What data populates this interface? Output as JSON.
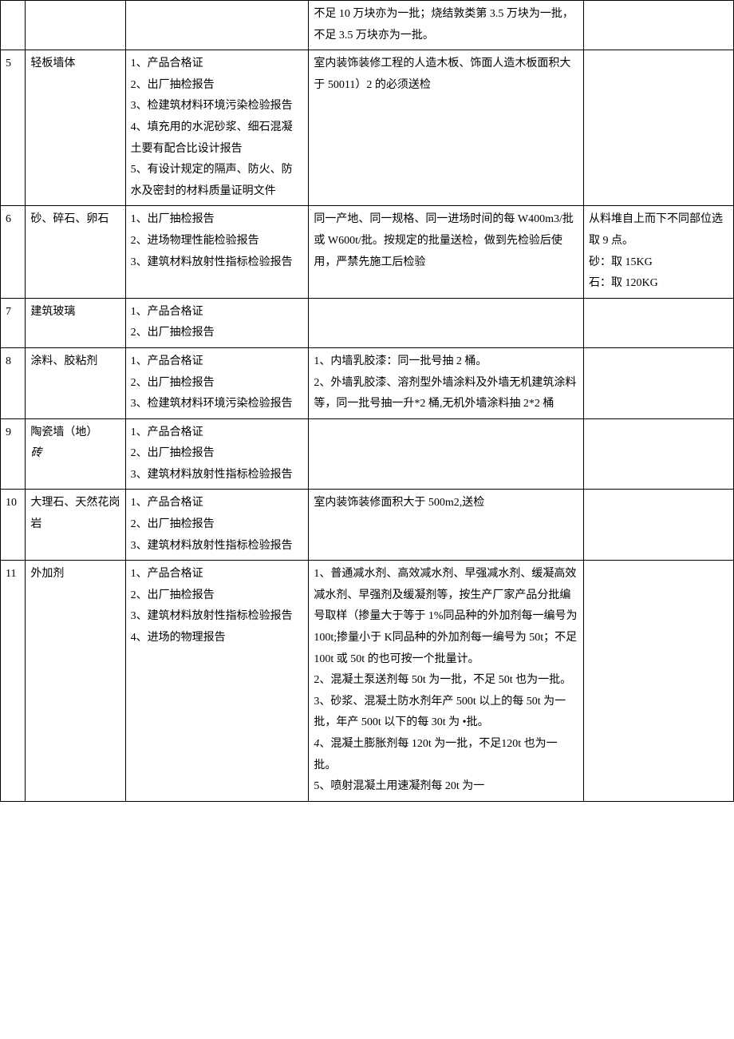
{
  "rows": [
    {
      "no": "",
      "name": "",
      "docs": "",
      "batch": "不足 10 万块亦为一批；烧结敦类第 3.5 万块为一批，不足 3.5 万块亦为一批。",
      "note": ""
    },
    {
      "no": "5",
      "name": "轻板墙体",
      "docs": "1、产品合格证\n2、出厂抽检报告\n3、检建筑材料环境污染检验报告\n4、填充用的水泥砂浆、细石混凝土要有配合比设计报告\n5、有设计规定的隔声、防火、防水及密封的材料质量证明文件",
      "batch": "室内装饰装修工程的人造木板、饰面人造木板面积大于 50011）2 的必须送检",
      "note": ""
    },
    {
      "no": "6",
      "name": "砂、碎石、卵石",
      "docs": "1、出厂抽检报告\n2、进场物理性能检验报告\n3、建筑材料放射性指标检验报告",
      "batch": "同一产地、同一规格、同一进场时间的每 W400m3/批或 W600t/批。按规定的批量送检，做到先检验后使用，严禁先施工后检验",
      "note": "从料堆自上而下不同部位选取 9 点。\n砂：取 15KG\n石：取 120KG"
    },
    {
      "no": "7",
      "name": "建筑玻璃",
      "docs": "1、产品合格证\n2、出厂抽检报告",
      "batch": "",
      "note": ""
    },
    {
      "no": "8",
      "name": "涂料、胶粘剂",
      "docs": "1、产品合格证\n2、出厂抽检报告\n3、检建筑材料环境污染检验报告",
      "batch": "1、内墙乳胶漆：同一批号抽 2 桶。\n2、外墙乳胶漆、溶剂型外墙涂料及外墙无机建筑涂料等，同一批号抽一升*2 桶,无机外墙涂料抽 2*2 桶",
      "note": ""
    },
    {
      "no": "9",
      "name_line1": "陶瓷墙（地）",
      "name_line2_italic": "砖",
      "docs": "1、产品合格证\n2、出厂抽检报告\n3、建筑材料放射性指标检验报告",
      "batch": "",
      "note": ""
    },
    {
      "no": "10",
      "name": "大理石、天然花岗岩",
      "docs": "1、产品合格证\n2、出厂抽检报告\n3、建筑材料放射性指标检验报告",
      "batch": "室内装饰装修面积大于 500m2,送检",
      "note": ""
    },
    {
      "no": "11",
      "name": "外加剂",
      "docs": "1、产品合格证\n2、出厂抽检报告\n3、建筑材料放射性指标检验报告\n4、进场的物理报告",
      "batch_line1": "1、普通减水剂、高效减水剂、早强减水剂、缓凝高效减水剂、早强剂及缓凝剂等，按生产厂家产品分批编号取样（掺量大于等于 1%同品种的外加剂每一编号为 100t;掺量小于 K同品种的外加剂每一编号为 50t；不足 100t 或 50t 的也可按一个批量计。",
      "batch_line2": "2、混凝土泵送剂每 50t 为一批，不足 50t 也为一批。",
      "batch_line3": "3、砂浆、混凝土防水剂年产 500t 以上的每 50t 为一批，年产 500t 以下的每 30t 为 •批。",
      "batch_line4_italic_prefix": "4",
      "batch_line4_rest": "、混凝土膨胀剂每 120t 为一批，不足120t 也为一批。",
      "batch_line5": "5、喷射混凝土用速凝剂每 20t 为一",
      "note": ""
    }
  ]
}
